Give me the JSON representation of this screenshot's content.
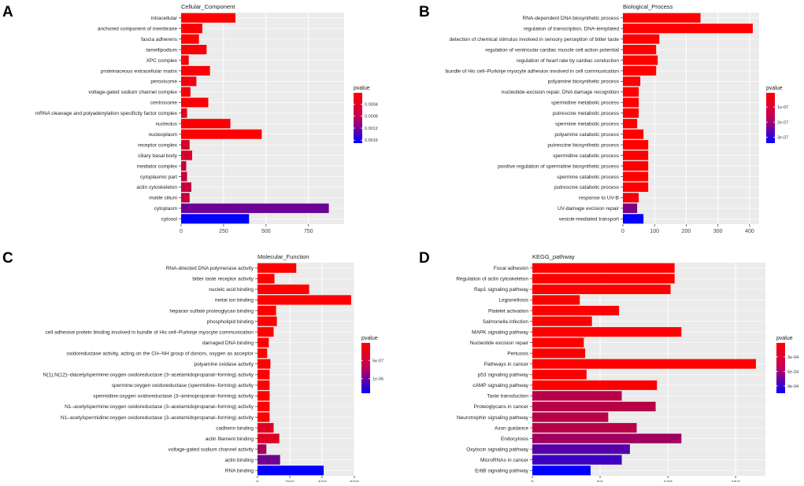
{
  "chart_data": [
    {
      "type": "bar",
      "orientation": "horizontal",
      "panel_letter": "A",
      "title": "Cellular_Component",
      "categories": [
        "intracellular",
        "anchored component of membrane",
        "fascia adherens",
        "lamellipodium",
        "XPC complex",
        "proteinaceous extracellular matrix",
        "peroxisome",
        "voltage-gated sodium channel complex",
        "centrosome",
        "mRNA cleavage and polyadenylation specificity factor complex",
        "nucleolus",
        "nucleoplasm",
        "receptor complex",
        "ciliary basal body",
        "mediator complex",
        "cytoplasmic part",
        "actin cytoskeleton",
        "motile cilium",
        "cytoplasm",
        "cytosol"
      ],
      "values": [
        320,
        125,
        105,
        150,
        45,
        170,
        90,
        55,
        160,
        35,
        290,
        475,
        50,
        65,
        30,
        35,
        60,
        50,
        870,
        400
      ],
      "pvalues": [
        2e-05,
        5e-05,
        4e-05,
        6e-05,
        0.0001,
        5e-05,
        0.0001,
        0.0001,
        5e-05,
        0.0002,
        5e-05,
        3e-05,
        0.0003,
        0.0003,
        0.0004,
        0.0004,
        0.0004,
        0.0004,
        0.001,
        0.0017
      ],
      "xlim": [
        0,
        960
      ],
      "xticks": [
        "0",
        "250",
        "500",
        "750"
      ],
      "legend": {
        "title": "pvalue",
        "labels": [
          "0.0004",
          "0.0008",
          "0.0012",
          "0.0016"
        ],
        "range": [
          2e-05,
          0.0017
        ]
      }
    },
    {
      "type": "bar",
      "orientation": "horizontal",
      "panel_letter": "B",
      "title": "Biological_Process",
      "categories": [
        "RNA-dependent DNA biosynthetic process",
        "regulation of transcription, DNA-templated",
        "detection of chemical stimulus involved in sensory perception of bitter taste",
        "regulation of ventricular cardiac muscle cell action potential",
        "regulation of heart rate by cardiac conduction",
        "bundle of His cell–Purkinje myocyte adhesion involved in cell communication",
        "polyamine biosynthetic process",
        "nucleotide-excision repair, DNA damage recognition",
        "spermidine metabolic process",
        "putrescine metabolic process",
        "spermine metabolic process",
        "polyamine catabolic process",
        "putrescine biosynthetic process",
        "spermidine catabolic process",
        "positive regulation of spermidine biosynthetic process",
        "spermine catabolic process",
        "putrescine catabolic process",
        "response to UV-B",
        "UV-damage excision repair",
        "vesicle-mediated transport"
      ],
      "values": [
        245,
        410,
        115,
        105,
        110,
        105,
        55,
        50,
        50,
        50,
        45,
        65,
        80,
        80,
        80,
        80,
        80,
        50,
        45,
        65
      ],
      "pvalues": [
        5e-09,
        5e-09,
        5e-09,
        5e-09,
        5e-09,
        5e-09,
        5e-09,
        5e-09,
        5e-09,
        5e-09,
        5e-09,
        5e-09,
        5e-09,
        5e-09,
        5e-09,
        5e-09,
        5e-09,
        2e-08,
        1.8e-07,
        3.4e-07
      ],
      "xlim": [
        0,
        430
      ],
      "xticks": [
        "0",
        "100",
        "200",
        "300",
        "400"
      ],
      "legend": {
        "title": "pvalue",
        "labels": [
          "1e-07",
          "2e-07",
          "3e-07"
        ],
        "range": [
          5e-09,
          3.4e-07
        ]
      }
    },
    {
      "type": "bar",
      "orientation": "horizontal",
      "panel_letter": "C",
      "title": "Molecular_Function",
      "categories": [
        "RNA-directed DNA polymerase activity",
        "bitter taste receptor activity",
        "nucleic acid binding",
        "metal ion binding",
        "heparan sulfate proteoglycan binding",
        "phospholipid binding",
        "cell adhesive protein binding involved in bundle of His cell–Purkinje myocyte communication",
        "damaged DNA binding",
        "oxidoreductase activity, acting on the CH–NH group of donors, oxygen as acceptor",
        "polyamine oxidase activity",
        "N(1),N(12)–diacetylspermine:oxygen oxidoreductase (3–acetamidopropanal–forming) activity",
        "spermine:oxygen oxidoreductase (spermidine–forming) activity",
        "spermidine:oxygen oxidoreductase (3–aminopropanal–forming) activity",
        "N1–acetylspermine:oxygen oxidoreductase (3–acetamidopropanal–forming) activity",
        "N1–acetylspermidine:oxygen oxidoreductase (3–acetamidopropanal–forming) activity",
        "cadherin binding",
        "actin filament binding",
        "voltage-gated sodium channel activity",
        "actin binding",
        "RNA binding"
      ],
      "values": [
        240,
        105,
        320,
        580,
        115,
        120,
        100,
        70,
        60,
        80,
        75,
        75,
        75,
        75,
        75,
        100,
        135,
        55,
        140,
        410
      ],
      "pvalues": [
        2e-08,
        2e-08,
        2e-08,
        2e-08,
        2e-08,
        2e-08,
        2e-08,
        2e-08,
        3e-08,
        3e-08,
        3e-08,
        3e-08,
        3e-08,
        3e-08,
        3e-08,
        2e-07,
        2e-07,
        5e-07,
        8e-07,
        1.4e-06
      ],
      "xlim": [
        0,
        600
      ],
      "xticks": [
        "0",
        "200",
        "400",
        "600"
      ],
      "legend": {
        "title": "pvalue",
        "labels": [
          "5e-07",
          "1e-06"
        ],
        "range": [
          2e-08,
          1.4e-06
        ]
      }
    },
    {
      "type": "bar",
      "orientation": "horizontal",
      "panel_letter": "D",
      "title": "KEGG_pathway",
      "categories": [
        "Focal adhesion",
        "Regulation of actin cytoskeleton",
        "Rap1 signaling pathway",
        "Legionellosis",
        "Platelet activation",
        "Salmonella infection",
        "MAPK signaling pathway",
        "Nucleotide excision repair",
        "Pertussis",
        "Pathways in cancer",
        "p53 signaling pathway",
        "cAMP signaling pathway",
        "Taste transduction",
        "Proteoglycans in cancer",
        "Neurotrophin signaling pathway",
        "Axon guidance",
        "Endocytosis",
        "Oxytocin signaling pathway",
        "MicroRNAs in cancer",
        "ErbB signaling pathway"
      ],
      "values": [
        105,
        105,
        102,
        35,
        64,
        44,
        110,
        38,
        39,
        165,
        40,
        92,
        66,
        91,
        56,
        77,
        110,
        72,
        66,
        43
      ],
      "pvalues": [
        1e-05,
        1e-05,
        1e-05,
        1e-05,
        1e-05,
        1e-05,
        1e-05,
        1e-05,
        1e-05,
        1e-05,
        1e-05,
        1e-05,
        0.0003,
        0.0003,
        0.0003,
        0.0003,
        0.0004,
        0.0007,
        0.0008,
        0.00105
      ],
      "xlim": [
        0,
        172
      ],
      "xticks": [
        "0",
        "50",
        "100",
        "150"
      ],
      "legend": {
        "title": "pvalue",
        "labels": [
          "3e-04",
          "6e-04",
          "9e-04"
        ],
        "range": [
          1e-05,
          0.00105
        ]
      }
    }
  ]
}
